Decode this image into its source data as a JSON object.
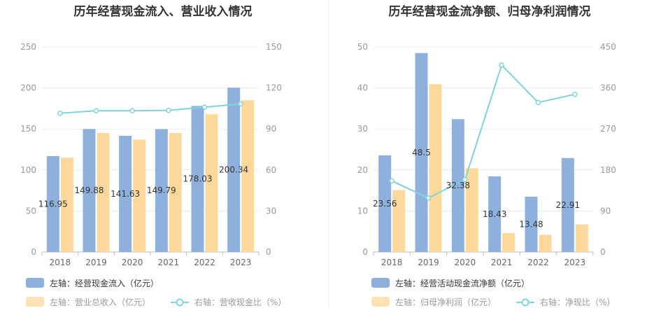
{
  "colors": {
    "bar1": "#8eb0dd",
    "bar2": "#fdd89b",
    "line": "#80d3db",
    "grid": "#e8eaf3",
    "legend_text_active": "#333333",
    "legend_text_inactive": "#999999"
  },
  "chart_data": [
    {
      "type": "bar",
      "title": "历年经营现金流入、营业收入情况",
      "categories": [
        "2018",
        "2019",
        "2020",
        "2021",
        "2022",
        "2023"
      ],
      "left_axis": {
        "ylim": [
          0,
          250
        ],
        "ticks": [
          0,
          50,
          100,
          150,
          200,
          250
        ]
      },
      "right_axis": {
        "ylim": [
          0,
          150
        ],
        "ticks": [
          0,
          30,
          60,
          90,
          120,
          150
        ]
      },
      "series": [
        {
          "name": "左轴：经营现金流入（亿元）",
          "type": "bar",
          "axis": "left",
          "values": [
            116.95,
            149.88,
            141.63,
            149.79,
            178.03,
            200.34
          ],
          "labels_shown": true
        },
        {
          "name": "左轴：营业总收入（亿元）",
          "type": "bar",
          "axis": "left",
          "values": [
            115,
            145,
            137,
            145,
            168,
            185
          ],
          "labels_shown": false
        },
        {
          "name": "右轴：营收现金比（%）",
          "type": "line",
          "axis": "right",
          "values": [
            101.5,
            103.3,
            103.3,
            103.6,
            105.9,
            108.3
          ],
          "labels_shown": false
        }
      ],
      "legend": {
        "placement": "bottom-left"
      }
    },
    {
      "type": "bar",
      "title": "历年经营现金流净额、归母净利润情况",
      "categories": [
        "2018",
        "2019",
        "2020",
        "2021",
        "2022",
        "2023"
      ],
      "left_axis": {
        "ylim": [
          0,
          50
        ],
        "ticks": [
          0,
          10,
          20,
          30,
          40,
          50
        ]
      },
      "right_axis": {
        "ylim": [
          0,
          450
        ],
        "ticks": [
          0,
          90,
          180,
          270,
          360,
          450
        ]
      },
      "series": [
        {
          "name": "左轴：经营活动现金流净额（亿元）",
          "type": "bar",
          "axis": "left",
          "values": [
            23.56,
            48.5,
            32.38,
            18.43,
            13.48,
            22.91
          ],
          "labels_shown": true
        },
        {
          "name": "左轴：归母净利润（亿元）",
          "type": "bar",
          "axis": "left",
          "values": [
            15.1,
            40.9,
            20.4,
            4.6,
            4.2,
            6.7
          ],
          "labels_shown": false
        },
        {
          "name": "右轴：净现比（%）",
          "type": "line",
          "axis": "right",
          "values": [
            156,
            118.5,
            159,
            410,
            328,
            346
          ],
          "labels_shown": false
        }
      ],
      "legend": {
        "placement": "bottom-left"
      }
    }
  ]
}
